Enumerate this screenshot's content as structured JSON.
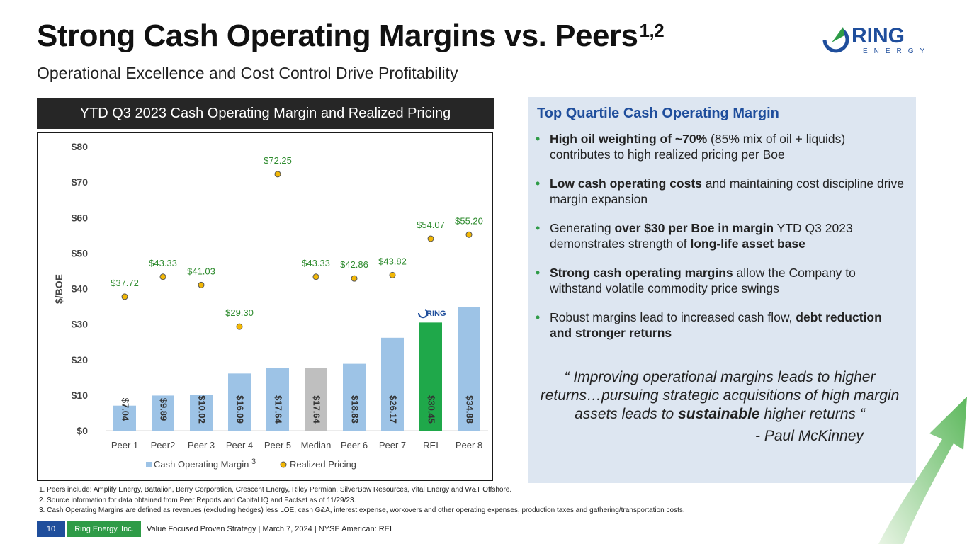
{
  "header": {
    "title": "Strong Cash Operating Margins vs. Peers",
    "title_sup": "1,2",
    "subtitle": "Operational Excellence and Cost Control Drive Profitability",
    "logo_text": "RING",
    "logo_subtext": "ENERGY"
  },
  "chart_header": "YTD Q3 2023 Cash Operating Margin and Realized Pricing",
  "chart_data": {
    "type": "bar",
    "ylabel": "$/BOE",
    "ylim": [
      0,
      80
    ],
    "yticks": [
      "$0",
      "$10",
      "$20",
      "$30",
      "$40",
      "$50",
      "$60",
      "$70",
      "$80"
    ],
    "ytick_values": [
      0,
      10,
      20,
      30,
      40,
      50,
      60,
      70,
      80
    ],
    "categories": [
      "Peer 1",
      "Peer2",
      "Peer 3",
      "Peer 4",
      "Peer 5",
      "Median",
      "Peer 6",
      "Peer 7",
      "REI",
      "Peer 8"
    ],
    "series": [
      {
        "name": "Cash Operating Margin",
        "type": "bar",
        "values": [
          7.04,
          9.89,
          10.02,
          16.09,
          17.64,
          17.64,
          18.83,
          26.17,
          30.45,
          34.88
        ],
        "labels": [
          "$7.04",
          "$9.89",
          "$10.02",
          "$16.09",
          "$17.64",
          "$17.64",
          "$18.83",
          "$26.17",
          "$30.45",
          "$34.88"
        ]
      },
      {
        "name": "Realized Pricing",
        "type": "scatter",
        "values": [
          37.72,
          43.33,
          41.03,
          29.3,
          72.25,
          43.33,
          42.86,
          43.82,
          54.07,
          55.2
        ],
        "labels": [
          "$37.72",
          "$43.33",
          "$41.03",
          "$29.30",
          "$72.25",
          "$43.33",
          "$42.86",
          "$43.82",
          "$54.07",
          "$55.20"
        ]
      }
    ],
    "legend_sup": "3",
    "bar_color": "#9dc3e6",
    "median_color": "#bfbfbf",
    "rei_color": "#1fa84a",
    "point_color": "#f2b705",
    "point_label_color": "#2e8b2e",
    "legend_position": "bottom",
    "grid": false,
    "ring_logo_text": "RING"
  },
  "panel": {
    "title": "Top Quartile Cash Operating Margin",
    "bullets": [
      {
        "bold": "High oil weighting of ~70%",
        "rest": "  (85% mix of oil + liquids) contributes to high realized pricing per Boe"
      },
      {
        "bold": "Low cash operating costs",
        "rest": " and maintaining cost discipline drive margin expansion"
      },
      {
        "pre": "Generating ",
        "bold": "over $30 per Boe in margin",
        "rest": " YTD Q3 2023 demonstrates strength of ",
        "bold2": "long-life asset base"
      },
      {
        "bold": "Strong cash operating margins",
        "rest": " allow the Company to withstand volatile commodity price swings"
      },
      {
        "pre": "Robust margins lead to increased cash flow, ",
        "bold": "debt reduction and stronger returns"
      }
    ],
    "quote_part1": "“ Improving operational margins leads to higher returns…pursuing strategic acquisitions of high margin assets leads to ",
    "quote_bold": "sustainable",
    "quote_part2": " higher returns “",
    "quote_author": "- Paul McKinney"
  },
  "footnotes": [
    "1.   Peers include: Amplify Energy, Battalion, Berry Corporation, Crescent Energy, Riley Permian, SilverBow Resources, Vital Energy and W&T Offshore.",
    "2.   Source information for data obtained from Peer Reports and Capital IQ and Factset as of 11/29/23.",
    "3.   Cash Operating Margins are defined as revenues (excluding hedges) less LOE, cash G&A, interest expense, workovers and other operating expenses, production taxes and gathering/transportation costs."
  ],
  "footer": {
    "page": "10",
    "company": "Ring Energy, Inc.",
    "text": "Value Focused Proven Strategy | March 7, 2024 |  NYSE American: REI"
  },
  "colors": {
    "brand_blue": "#1f4e9c",
    "brand_green": "#2e9b47",
    "panel_bg": "#dde6f1"
  }
}
